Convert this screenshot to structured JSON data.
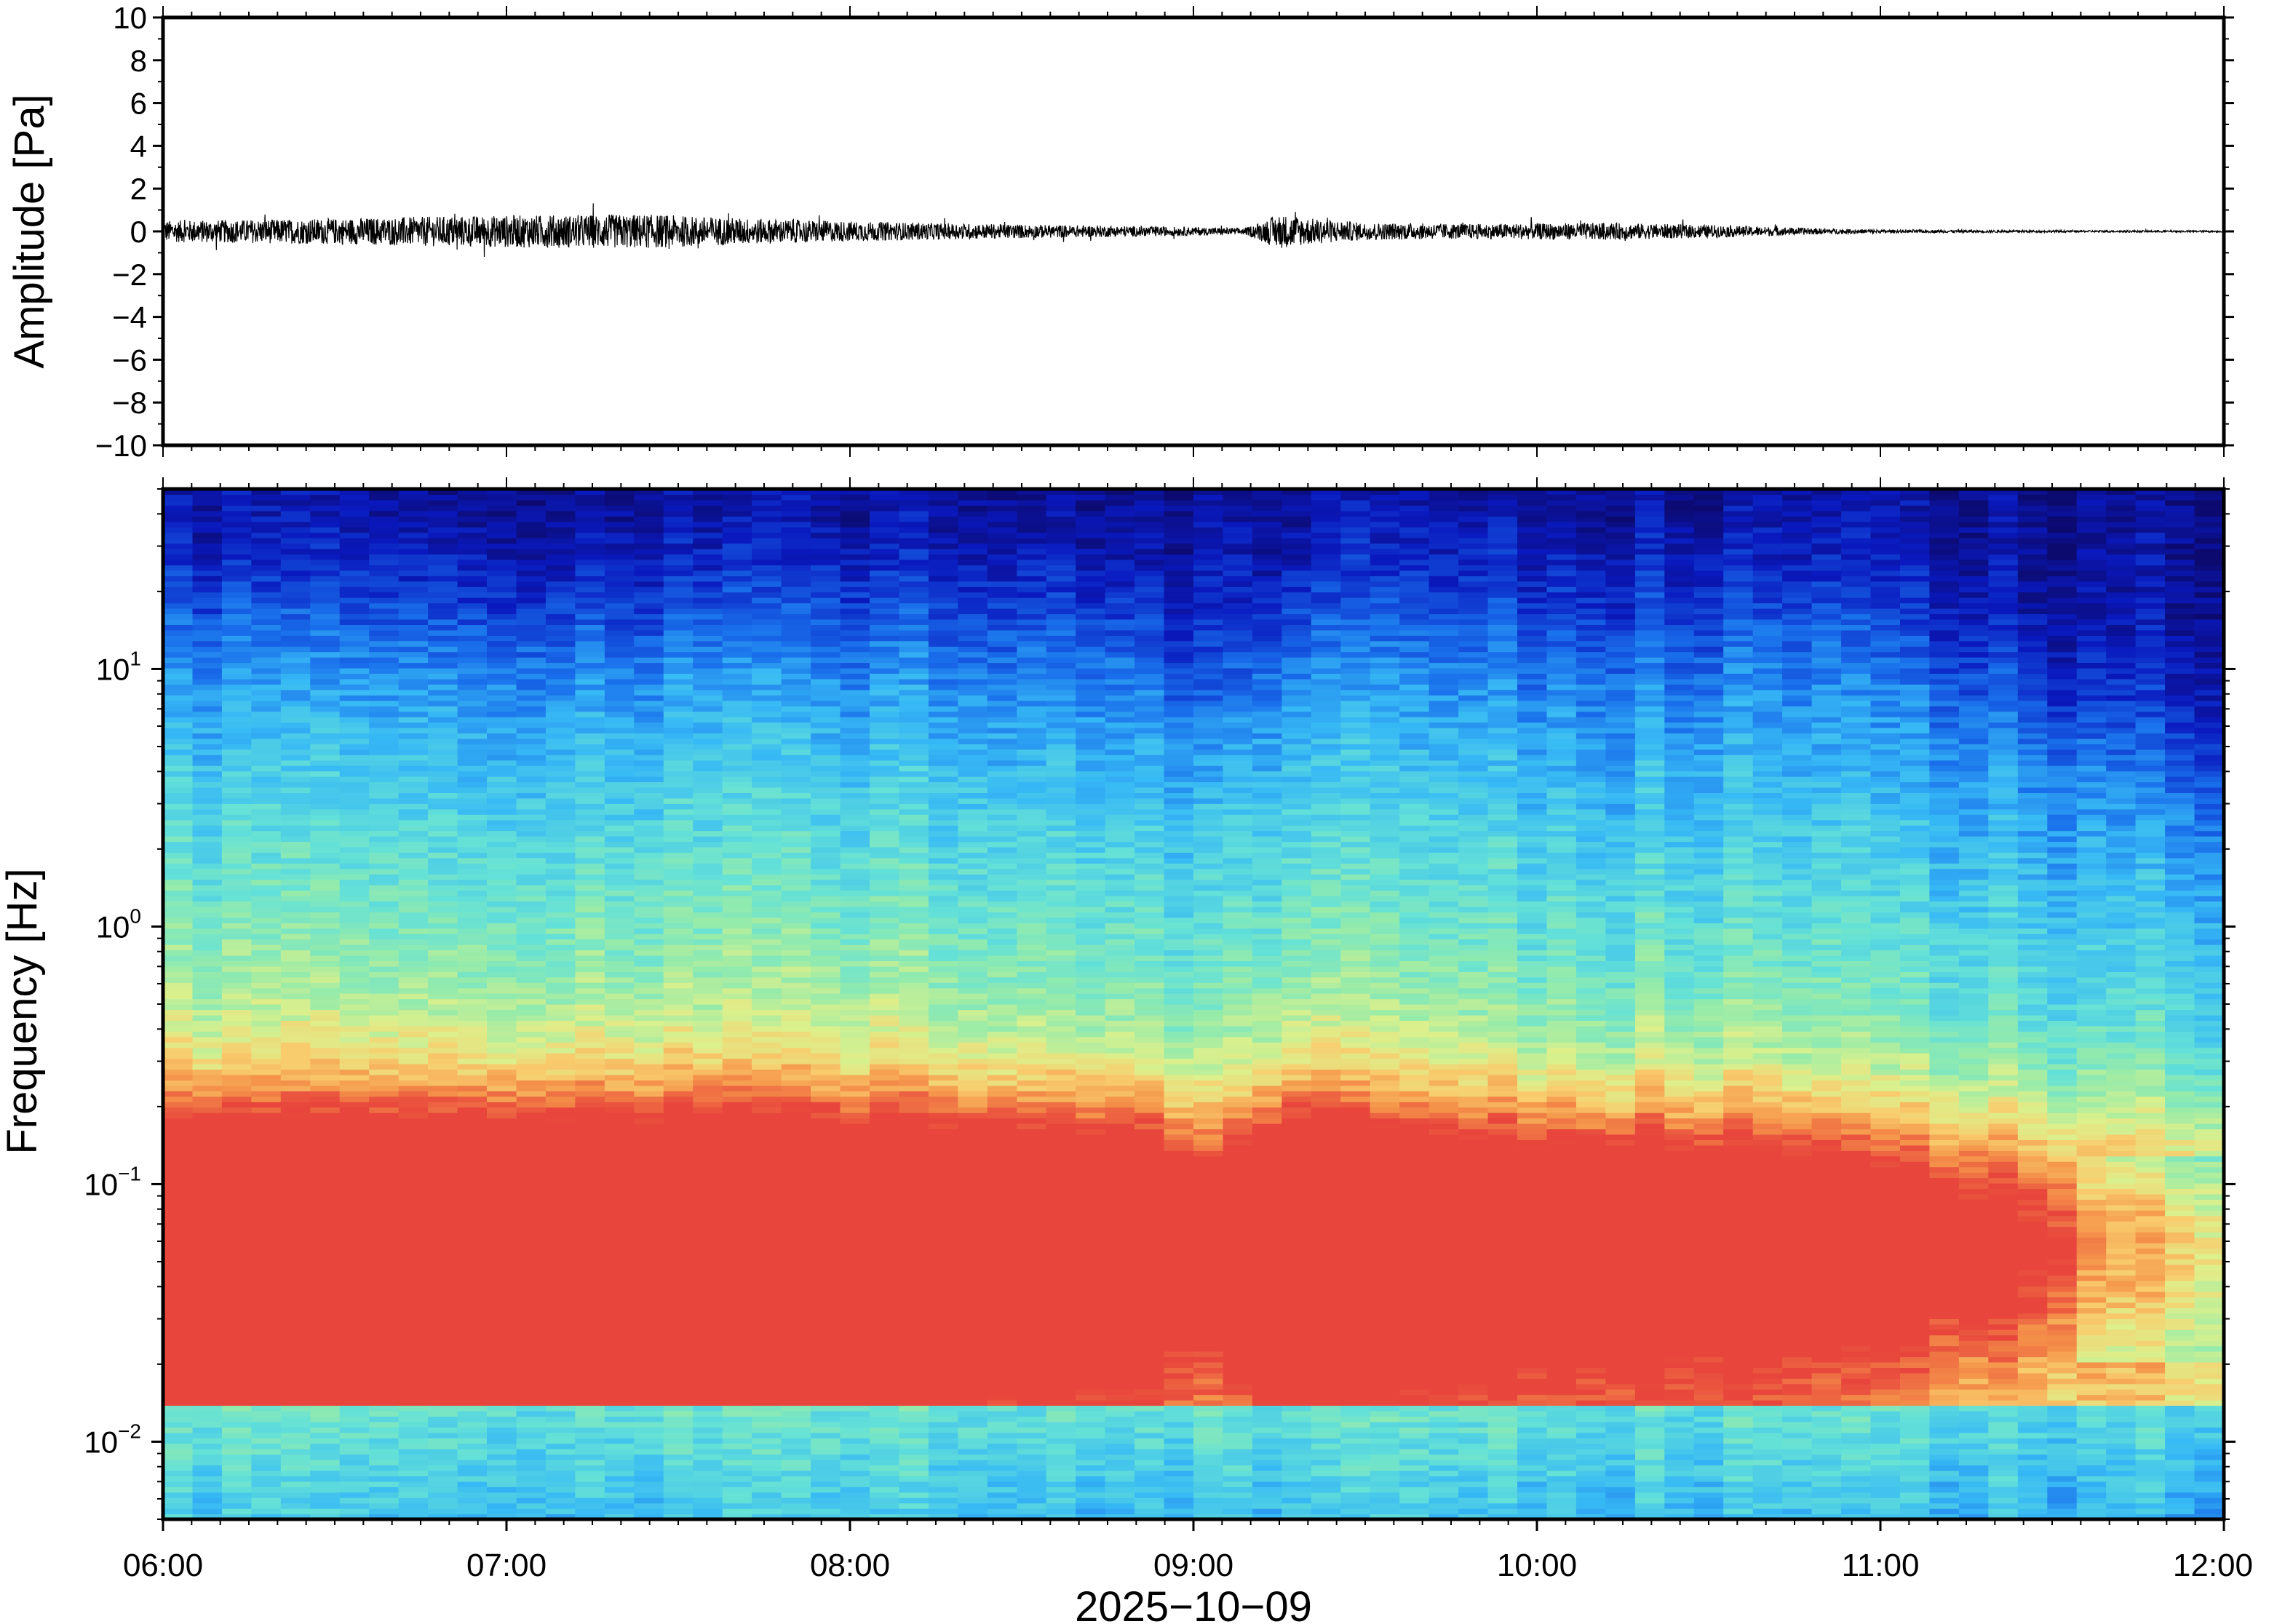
{
  "chart_data": [
    {
      "type": "line",
      "ylabel": "Amplitude [Pa]",
      "ylim": [
        -10,
        10
      ],
      "yticks": [
        10,
        8,
        6,
        4,
        2,
        0,
        -2,
        -4,
        -6,
        -8,
        -10
      ],
      "ytick_labels": [
        "10",
        "8",
        "6",
        "4",
        "2",
        "0",
        "−2",
        "−4",
        "−6",
        "−8",
        "−10"
      ],
      "xlim": [
        "06:00",
        "12:00"
      ],
      "grid": false,
      "trace_envelope": {
        "t_hours": [
          6.0,
          6.5,
          6.8,
          7.0,
          7.4,
          7.8,
          8.2,
          8.6,
          9.0,
          9.15,
          9.25,
          9.35,
          9.5,
          9.8,
          10.2,
          10.5,
          10.8,
          11.0,
          11.5,
          12.0
        ],
        "amplitude_pa": [
          0.5,
          0.6,
          0.7,
          0.75,
          0.8,
          0.55,
          0.4,
          0.3,
          0.2,
          0.15,
          0.8,
          0.6,
          0.4,
          0.35,
          0.4,
          0.3,
          0.15,
          0.08,
          0.05,
          0.04
        ]
      },
      "line_color": "#000000"
    },
    {
      "type": "heatmap",
      "ylabel": "Frequency [Hz]",
      "yscale": "log",
      "ylim": [
        0.005,
        50
      ],
      "yticks": [
        0.01,
        0.1,
        1,
        10
      ],
      "ytick_labels": [
        {
          "base": "10",
          "exp": "−2"
        },
        {
          "base": "10",
          "exp": "−1"
        },
        {
          "base": "10",
          "exp": "0"
        },
        {
          "base": "10",
          "exp": "1"
        }
      ],
      "x_ticks": [
        "06:00",
        "07:00",
        "08:00",
        "09:00",
        "10:00",
        "11:00",
        "12:00"
      ],
      "xlabel": "2025−10−09",
      "colormap": "jet",
      "grid": false,
      "dominant_band_hz": [
        0.03,
        0.1
      ],
      "noted_events": [
        "09:15"
      ]
    }
  ]
}
